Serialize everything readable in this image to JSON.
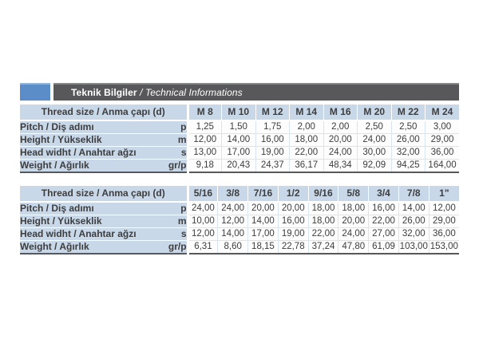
{
  "header": {
    "title_tr": "Teknik Bilgiler",
    "title_sep": " / ",
    "title_en": "Technical Informations"
  },
  "colors": {
    "accent_blue": "#5b8ec8",
    "bar_dark": "#58585a",
    "cell_blue": "#c8d8e9",
    "grid_blue": "#d9e4f0",
    "text": "#3d3d3d"
  },
  "tables": [
    {
      "header_label": "Thread size / Anma çapı (d)",
      "columns": [
        "M 8",
        "M 10",
        "M 12",
        "M 14",
        "M 16",
        "M 20",
        "M 22",
        "M 24"
      ],
      "rows": [
        {
          "label": "Pitch / Diş adımı",
          "unit": "p",
          "values": [
            "1,25",
            "1,50",
            "1,75",
            "2,00",
            "2,00",
            "2,50",
            "2,50",
            "3,00"
          ]
        },
        {
          "label": "Height / Yükseklik",
          "unit": "m",
          "values": [
            "12,00",
            "14,00",
            "16,00",
            "18,00",
            "20,00",
            "24,00",
            "26,00",
            "29,00"
          ]
        },
        {
          "label": "Head widht / Anahtar ağzı",
          "unit": "s",
          "values": [
            "13,00",
            "17,00",
            "19,00",
            "22,00",
            "24,00",
            "30,00",
            "32,00",
            "36,00"
          ]
        },
        {
          "label": "Weight / Ağırlık",
          "unit": "gr/p",
          "values": [
            "9,18",
            "20,43",
            "24,37",
            "36,17",
            "48,34",
            "92,09",
            "94,25",
            "164,00"
          ]
        }
      ]
    },
    {
      "header_label": "Thread size / Anma çapı (d)",
      "columns": [
        "5/16",
        "3/8",
        "7/16",
        "1/2",
        "9/16",
        "5/8",
        "3/4",
        "7/8",
        "1\""
      ],
      "rows": [
        {
          "label": "Pitch / Diş adımı",
          "unit": "p",
          "values": [
            "24,00",
            "24,00",
            "20,00",
            "20,00",
            "18,00",
            "18,00",
            "16,00",
            "14,00",
            "12,00"
          ]
        },
        {
          "label": "Height / Yükseklik",
          "unit": "m",
          "values": [
            "10,00",
            "12,00",
            "14,00",
            "16,00",
            "18,00",
            "20,00",
            "22,00",
            "26,00",
            "29,00"
          ]
        },
        {
          "label": "Head widht / Anahtar ağzı",
          "unit": "s",
          "values": [
            "12,00",
            "14,00",
            "17,00",
            "19,00",
            "22,00",
            "24,00",
            "27,00",
            "32,00",
            "36,00"
          ]
        },
        {
          "label": "Weight / Ağırlık",
          "unit": "gr/p",
          "values": [
            "6,31",
            "8,60",
            "18,15",
            "22,78",
            "37,24",
            "47,80",
            "61,09",
            "103,00",
            "153,00"
          ]
        }
      ]
    }
  ]
}
